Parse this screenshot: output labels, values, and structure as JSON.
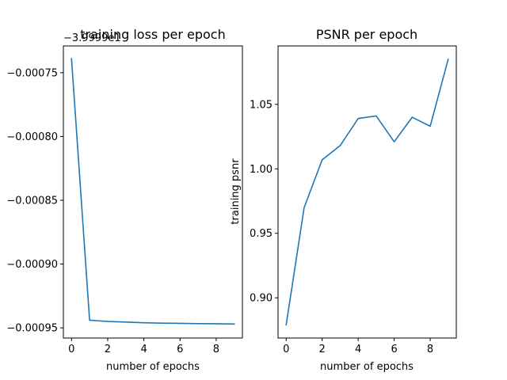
{
  "chart_data": [
    {
      "type": "line",
      "title": "training loss per epoch",
      "xlabel": "number of epochs",
      "ylabel": "",
      "offset_text": "−3.9999e1",
      "x": [
        0,
        1,
        2,
        3,
        4,
        5,
        6,
        7,
        8,
        9
      ],
      "series": [
        {
          "values": [
            -0.000739,
            -0.000944,
            -0.000945,
            -0.0009455,
            -0.000946,
            -0.0009463,
            -0.0009465,
            -0.0009467,
            -0.0009468,
            -0.000947
          ]
        }
      ],
      "xlim": [
        -0.45,
        9.45
      ],
      "ylim": [
        -0.000958,
        -0.000729
      ],
      "xticks": [
        0,
        2,
        4,
        6,
        8
      ],
      "xtick_labels": [
        "0",
        "2",
        "4",
        "6",
        "8"
      ],
      "yticks": [
        -0.00075,
        -0.0008,
        -0.00085,
        -0.0009,
        -0.00095
      ],
      "ytick_labels": [
        "−0.00075",
        "−0.00080",
        "−0.00085",
        "−0.00090",
        "−0.00095"
      ],
      "grid": false,
      "color": "#1f77b4"
    },
    {
      "type": "line",
      "title": "PSNR per epoch",
      "xlabel": "number of epochs",
      "ylabel": "training psnr",
      "x": [
        0,
        1,
        2,
        3,
        4,
        5,
        6,
        7,
        8,
        9
      ],
      "series": [
        {
          "values": [
            0.879,
            0.97,
            1.007,
            1.018,
            1.039,
            1.041,
            1.021,
            1.04,
            1.033,
            1.085
          ]
        }
      ],
      "xlim": [
        -0.45,
        9.45
      ],
      "ylim": [
        0.8688,
        1.0953
      ],
      "xticks": [
        0,
        2,
        4,
        6,
        8
      ],
      "xtick_labels": [
        "0",
        "2",
        "4",
        "6",
        "8"
      ],
      "yticks": [
        0.9,
        0.95,
        1.0,
        1.05
      ],
      "ytick_labels": [
        "0.90",
        "0.95",
        "1.00",
        "1.05"
      ],
      "grid": false,
      "color": "#1f77b4"
    }
  ]
}
